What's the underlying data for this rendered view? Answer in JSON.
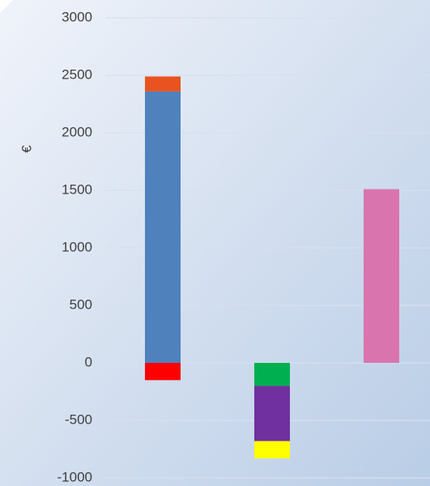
{
  "chart_data": {
    "type": "stacked_bar",
    "y_label": "€",
    "categories": [
      null,
      null,
      null
    ],
    "series": [
      {
        "color": "#4f81bd",
        "values": [
          2360,
          null,
          null
        ]
      },
      {
        "color": "#e8531f",
        "values": [
          130,
          null,
          null
        ]
      },
      {
        "color": "#ff0000",
        "values": [
          -150,
          null,
          null
        ]
      },
      {
        "color": "#00b050",
        "values": [
          null,
          -200,
          null
        ]
      },
      {
        "color": "#7030a0",
        "values": [
          null,
          -480,
          null
        ]
      },
      {
        "color": "#ffff00",
        "values": [
          null,
          -150,
          null
        ]
      },
      {
        "color": "#d974ae",
        "values": [
          null,
          null,
          1510
        ]
      }
    ],
    "ylim": [
      -1000,
      3000
    ],
    "yticks": [
      -1000,
      -500,
      0,
      500,
      1000,
      1500,
      2000,
      2500,
      3000
    ],
    "grid": true
  }
}
